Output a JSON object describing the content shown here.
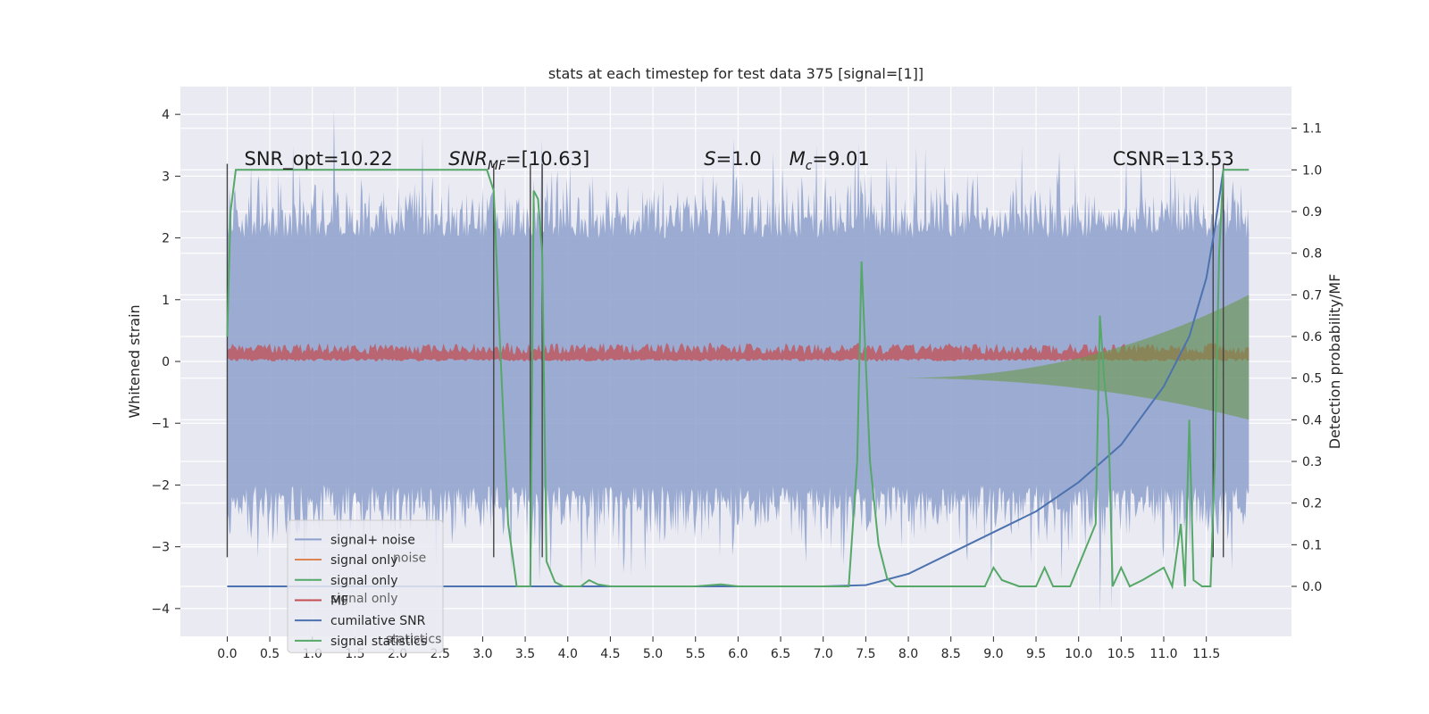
{
  "chart_data": {
    "type": "line",
    "title": "stats at each timestep for test data 375 [signal=[1]]",
    "xlabel": "",
    "ylabel": "Whitened strain",
    "ylabel_right": "Detection probability/MF",
    "xlim": [
      -0.55,
      12.5
    ],
    "ylim": [
      -4.45,
      4.45
    ],
    "ylim_right": [
      -0.12,
      1.2
    ],
    "x_ticks": [
      0.0,
      0.5,
      1.0,
      1.5,
      2.0,
      2.5,
      3.0,
      3.5,
      4.0,
      4.5,
      5.0,
      5.5,
      6.0,
      6.5,
      7.0,
      7.5,
      8.0,
      8.5,
      9.0,
      9.5,
      10.0,
      10.5,
      11.0,
      11.5
    ],
    "x_tick_labels": [
      "0.0",
      "0.5",
      "1.0",
      "1.5",
      "2.0",
      "2.5",
      "3.0",
      "3.5",
      "4.0",
      "4.5",
      "5.0",
      "5.5",
      "6.0",
      "6.5",
      "7.0",
      "7.5",
      "8.0",
      "8.5",
      "9.0",
      "9.5",
      "10.0",
      "10.5",
      "11.0",
      "11.5"
    ],
    "y_ticks": [
      -4,
      -3,
      -2,
      -1,
      0,
      1,
      2,
      3,
      4
    ],
    "y_tick_labels": [
      "−4",
      "−3",
      "−2",
      "−1",
      "0",
      "1",
      "2",
      "3",
      "4"
    ],
    "y_right_ticks": [
      0.0,
      0.1,
      0.2,
      0.3,
      0.4,
      0.5,
      0.6,
      0.7,
      0.8,
      0.9,
      1.0,
      1.1
    ],
    "y_right_tick_labels": [
      "0.0",
      "0.1",
      "0.2",
      "0.3",
      "0.4",
      "0.5",
      "0.6",
      "0.7",
      "0.8",
      "0.9",
      "1.0",
      "1.1"
    ],
    "grid": true,
    "legend_placement": "lower-left",
    "background": "#eaeaf2",
    "annotations": [
      {
        "text": "SNR_opt=10.22",
        "x": 0.2
      },
      {
        "text": "SNR_MF=[10.63]",
        "x": 2.6
      },
      {
        "text": "S=1.0",
        "x": 5.6
      },
      {
        "text": "M_c=9.01",
        "x": 6.6
      },
      {
        "text": "CSNR=13.53",
        "x": 10.4
      }
    ],
    "vertical_lines_x": [
      0.0,
      3.13,
      3.56,
      3.7,
      11.58,
      11.7
    ],
    "legend": [
      {
        "name": "signal+ noise",
        "color": "#8da0cb"
      },
      {
        "name": "signal only",
        "color": "#dd8452"
      },
      {
        "name": "signal only",
        "color": "#55a868"
      },
      {
        "name": "MF",
        "color": "#c44e52"
      },
      {
        "name": "cumilative SNR",
        "color": "#4c72b0"
      },
      {
        "name": "signal statistics",
        "color": "#55a868"
      }
    ],
    "legend_ghost": [
      {
        "name": "noise",
        "row": 1
      },
      {
        "name": "signal only",
        "row": 3
      },
      {
        "name": "statistics",
        "row": 5
      }
    ],
    "series": [
      {
        "name": "cumilative SNR",
        "axis": "right",
        "color": "#4c72b0",
        "x": [
          0.0,
          7.0,
          7.5,
          8.0,
          8.5,
          9.0,
          9.5,
          10.0,
          10.5,
          11.0,
          11.3,
          11.5,
          11.6,
          11.7
        ],
        "values": [
          0.0,
          0.0,
          0.003,
          0.03,
          0.08,
          0.13,
          0.18,
          0.25,
          0.34,
          0.48,
          0.6,
          0.74,
          0.86,
          1.0
        ]
      },
      {
        "name": "signal statistics",
        "axis": "right",
        "color": "#55a868",
        "x": [
          0.0,
          0.04,
          0.1,
          0.3,
          2.5,
          3.05,
          3.13,
          3.2,
          3.3,
          3.4,
          3.5,
          3.56,
          3.6,
          3.65,
          3.7,
          3.75,
          3.85,
          3.95,
          4.05,
          4.15,
          4.25,
          4.35,
          4.5,
          4.7,
          5.5,
          5.8,
          6.0,
          7.3,
          7.4,
          7.45,
          7.55,
          7.65,
          7.75,
          7.85,
          8.0,
          8.5,
          8.9,
          9.0,
          9.1,
          9.3,
          9.5,
          9.6,
          9.7,
          9.9,
          10.2,
          10.25,
          10.3,
          10.35,
          10.4,
          10.5,
          10.6,
          10.75,
          11.0,
          11.1,
          11.2,
          11.25,
          11.3,
          11.35,
          11.45,
          11.55,
          11.6,
          11.65,
          11.7,
          11.9,
          12.0
        ],
        "values": [
          0.6,
          0.9,
          1.0,
          1.0,
          1.0,
          1.0,
          0.95,
          0.6,
          0.15,
          0.0,
          0.0,
          0.0,
          0.95,
          0.93,
          0.8,
          0.06,
          0.01,
          0.0,
          0.0,
          0.0,
          0.015,
          0.005,
          0.0,
          0.0,
          0.0,
          0.005,
          0.0,
          0.0,
          0.3,
          0.78,
          0.3,
          0.1,
          0.02,
          0.0,
          0.0,
          0.0,
          0.0,
          0.045,
          0.015,
          0.0,
          0.0,
          0.045,
          0.0,
          0.0,
          0.15,
          0.65,
          0.5,
          0.4,
          0.0,
          0.045,
          0.0,
          0.015,
          0.045,
          0.0,
          0.15,
          0.0,
          0.4,
          0.015,
          0.0,
          0.0,
          0.3,
          0.8,
          1.0,
          1.0,
          1.0
        ]
      }
    ],
    "bands": [
      {
        "name": "signal+ noise",
        "axis": "left",
        "color": "#8da0cb",
        "x_range": [
          0.0,
          12.0
        ],
        "typical_range": [
          -2.8,
          2.8
        ],
        "peak_range": [
          -4.1,
          4.1
        ]
      },
      {
        "name": "MF",
        "axis": "left",
        "color": "#c44e52",
        "x_range": [
          0.0,
          12.0
        ],
        "typical_range": [
          0.0,
          0.3
        ]
      },
      {
        "name": "signal only",
        "axis": "right",
        "color": "#55a868",
        "x_range": [
          7.8,
          12.0
        ],
        "envelope_at_end": [
          0.4,
          0.7
        ]
      }
    ]
  }
}
